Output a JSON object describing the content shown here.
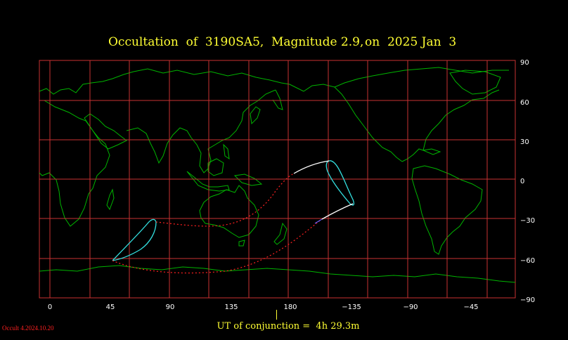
{
  "title": {
    "part1": "Occultation  of  3190SA5,",
    "part2": "Magnitude 2.9,",
    "part3": "on  2025 Jan  3"
  },
  "axes": {
    "longitude_ticks": [
      "0",
      "45",
      "90",
      "135",
      "180",
      "−135",
      "−90",
      "−45"
    ],
    "latitude_ticks": [
      "90",
      "60",
      "30",
      "0",
      "−30",
      "−60",
      "−90"
    ]
  },
  "conjunction": {
    "label": "UT of conjunction =  4h 29.3m"
  },
  "software_version": "Occult 4.2024.10.20",
  "colors": {
    "background": "#000000",
    "grid": "#c83232",
    "coastline": "#00b400",
    "title_text": "#ffff33",
    "axis_text": "#ffffff",
    "track_outline": "#33e0e0",
    "track_limb": "#ffffff",
    "track_path_dotted": "#ff2020",
    "version_text": "#ff2020"
  }
}
